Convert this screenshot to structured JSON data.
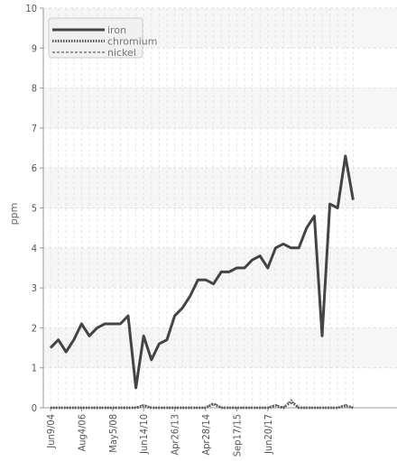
{
  "chart_data": {
    "type": "line",
    "title": "",
    "xlabel": "",
    "ylabel": "ppm",
    "ylim": [
      0,
      10
    ],
    "yticks": [
      0,
      1,
      2,
      3,
      4,
      5,
      6,
      7,
      8,
      9,
      10
    ],
    "grid": true,
    "legend_position": "top-left",
    "xtick_labels": [
      "Jun9/04",
      "Aug4/06",
      "May5/08",
      "Jun14/10",
      "Apr26/13",
      "Apr28/14",
      "Sep17/15",
      "Jun20/17"
    ],
    "xtick_index": [
      0,
      4,
      8,
      12,
      16,
      20,
      24,
      28
    ],
    "series": [
      {
        "name": "iron",
        "color": "#444444",
        "style": "solid",
        "values": [
          1.5,
          1.7,
          1.4,
          1.7,
          2.1,
          1.8,
          2.0,
          2.1,
          2.1,
          2.1,
          2.3,
          0.5,
          1.8,
          1.2,
          1.6,
          1.7,
          2.3,
          2.5,
          2.8,
          3.2,
          3.2,
          3.1,
          3.4,
          3.4,
          3.5,
          3.5,
          3.7,
          3.8,
          3.5,
          4.0,
          4.1,
          4.0,
          4.0,
          4.5,
          4.8,
          1.8,
          5.1,
          5.0,
          6.3,
          5.2
        ]
      },
      {
        "name": "chromium",
        "color": "#555555",
        "style": "dotted",
        "values": [
          0,
          0,
          0,
          0,
          0,
          0,
          0,
          0,
          0,
          0,
          0,
          0,
          0.05,
          0,
          0,
          0,
          0,
          0,
          0,
          0,
          0,
          0.1,
          0,
          0,
          0,
          0,
          0,
          0,
          0,
          0.05,
          0,
          0.15,
          0,
          0,
          0,
          0,
          0,
          0,
          0.05,
          0
        ]
      },
      {
        "name": "nickel",
        "color": "#777777",
        "style": "dashed",
        "values": [
          0,
          0,
          0,
          0,
          0,
          0,
          0,
          0,
          0,
          0,
          0,
          0,
          0.08,
          0,
          0,
          0,
          0,
          0,
          0,
          0,
          0,
          0.12,
          0,
          0,
          0,
          0,
          0,
          0,
          0,
          0.08,
          0,
          0.2,
          0,
          0,
          0,
          0,
          0,
          0,
          0.08,
          0
        ]
      }
    ]
  }
}
